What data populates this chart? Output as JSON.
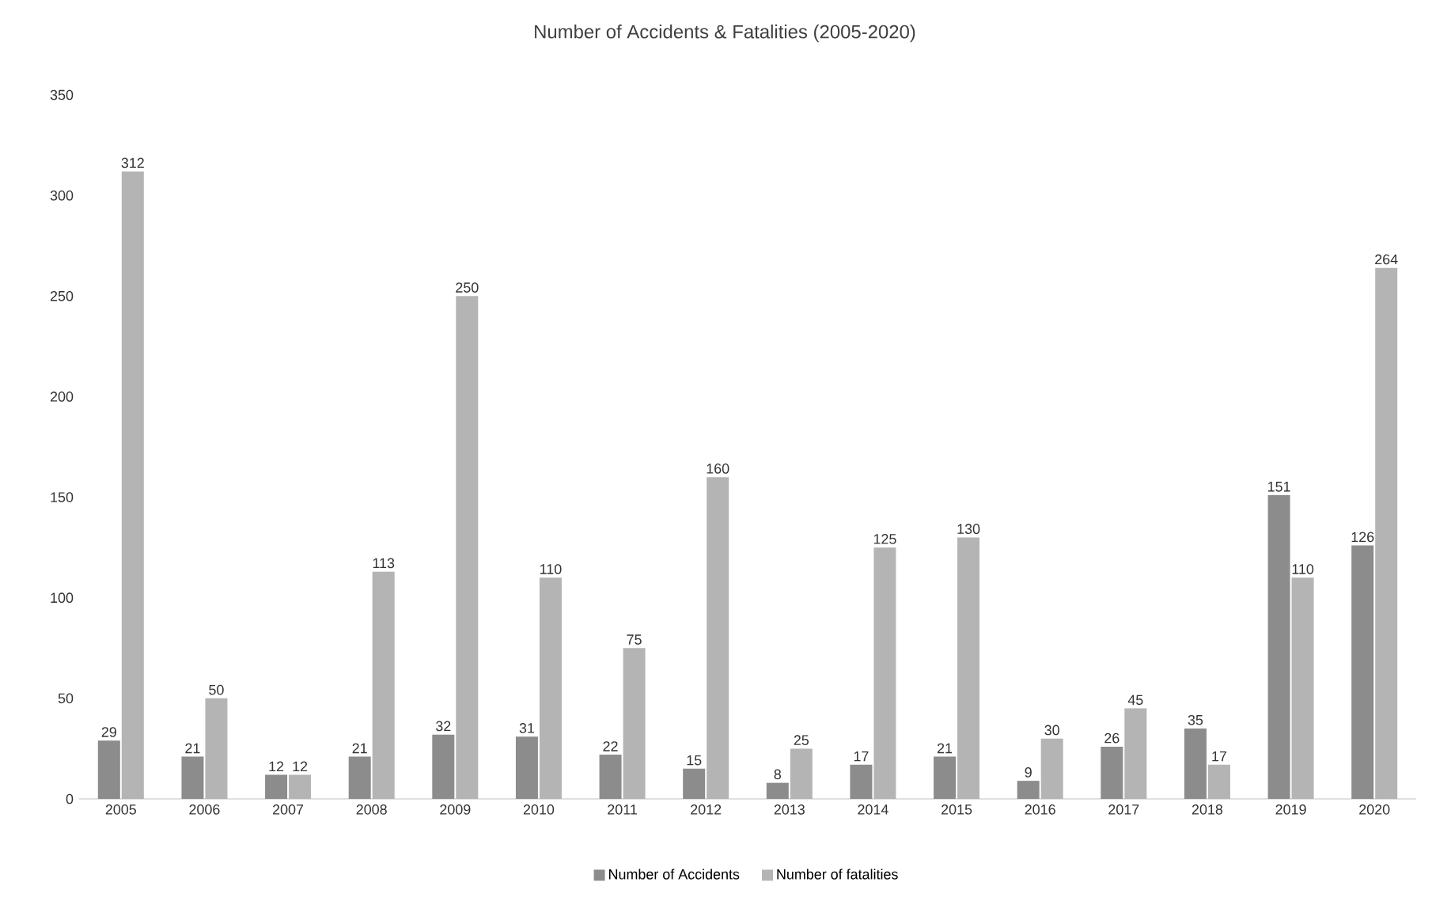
{
  "chart_data": {
    "type": "bar",
    "title": "Number of Accidents & Fatalities (2005-2020)",
    "categories": [
      "2005",
      "2006",
      "2007",
      "2008",
      "2009",
      "2010",
      "2011",
      "2012",
      "2013",
      "2014",
      "2015",
      "2016",
      "2017",
      "2018",
      "2019",
      "2020"
    ],
    "series": [
      {
        "name": "Number of Accidents",
        "color": "#8c8c8c",
        "values": [
          29,
          21,
          12,
          21,
          32,
          31,
          22,
          15,
          8,
          17,
          21,
          9,
          26,
          35,
          151,
          126
        ]
      },
      {
        "name": "Number of fatalities",
        "color": "#b4b4b4",
        "values": [
          312,
          50,
          12,
          113,
          250,
          110,
          75,
          160,
          25,
          125,
          130,
          30,
          45,
          17,
          110,
          264
        ]
      }
    ],
    "ylim": [
      0,
      350
    ],
    "yticks": [
      0,
      50,
      100,
      150,
      200,
      250,
      300,
      350
    ],
    "data_labels": true,
    "legend": "bottom"
  }
}
